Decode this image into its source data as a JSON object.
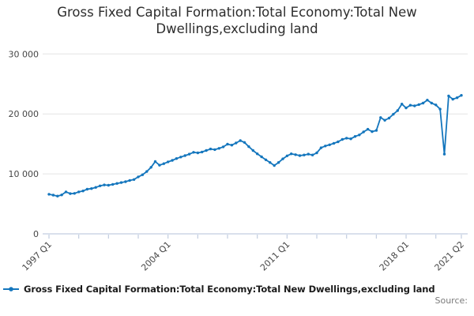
{
  "header": {
    "title_lines": [
      "Gross Fixed Capital Formation:Total Economy:Total New",
      "Dwellings,excluding land"
    ]
  },
  "legend": {
    "label": "Gross Fixed Capital Formation:Total Economy:Total New Dwellings,excluding land"
  },
  "source": {
    "label": "Source:"
  },
  "chart_data": {
    "type": "line",
    "title": "Gross Fixed Capital Formation:Total Economy:Total New Dwellings,excluding land",
    "frequency": "quarterly",
    "x_start": "1997 Q1",
    "x_end": "2021 Q2",
    "ylim": [
      0,
      30000
    ],
    "grid": true,
    "legend_position": "bottom",
    "line_color": "#1476bd",
    "grid_color": "#e4e4e4",
    "axis_color": "#c2cde0",
    "y_ticks": [
      {
        "value": 0,
        "label": "0"
      },
      {
        "value": 10000,
        "label": "10 000"
      },
      {
        "value": 20000,
        "label": "20 000"
      },
      {
        "value": 30000,
        "label": "30 000"
      }
    ],
    "x_tick_indices": [
      0,
      7,
      14,
      21,
      28,
      35,
      42,
      49,
      56,
      63,
      70,
      77,
      84,
      91,
      97
    ],
    "x_tick_labels": [
      {
        "index": 0,
        "label": "1997 Q1"
      },
      {
        "index": 28,
        "label": "2004 Q1"
      },
      {
        "index": 56,
        "label": "2011 Q1"
      },
      {
        "index": 84,
        "label": "2018 Q1"
      },
      {
        "index": 97,
        "label": "2021 Q2"
      }
    ],
    "values": [
      6600,
      6450,
      6300,
      6500,
      7000,
      6700,
      6750,
      7000,
      7150,
      7450,
      7550,
      7750,
      8000,
      8150,
      8100,
      8250,
      8400,
      8550,
      8700,
      8900,
      9050,
      9500,
      9850,
      10400,
      11100,
      12050,
      11450,
      11700,
      12000,
      12250,
      12550,
      12800,
      13050,
      13300,
      13600,
      13500,
      13650,
      13900,
      14150,
      14050,
      14250,
      14500,
      14950,
      14800,
      15150,
      15550,
      15250,
      14550,
      13900,
      13350,
      12850,
      12350,
      11900,
      11400,
      11900,
      12500,
      13000,
      13350,
      13200,
      13050,
      13150,
      13300,
      13150,
      13500,
      14350,
      14650,
      14850,
      15100,
      15350,
      15750,
      15950,
      15850,
      16250,
      16500,
      17000,
      17450,
      17050,
      17250,
      19400,
      18950,
      19300,
      19950,
      20550,
      21650,
      21000,
      21450,
      21350,
      21550,
      21800,
      22300,
      21800,
      21500,
      20800,
      13300,
      23000,
      22450,
      22700,
      23100
    ]
  }
}
